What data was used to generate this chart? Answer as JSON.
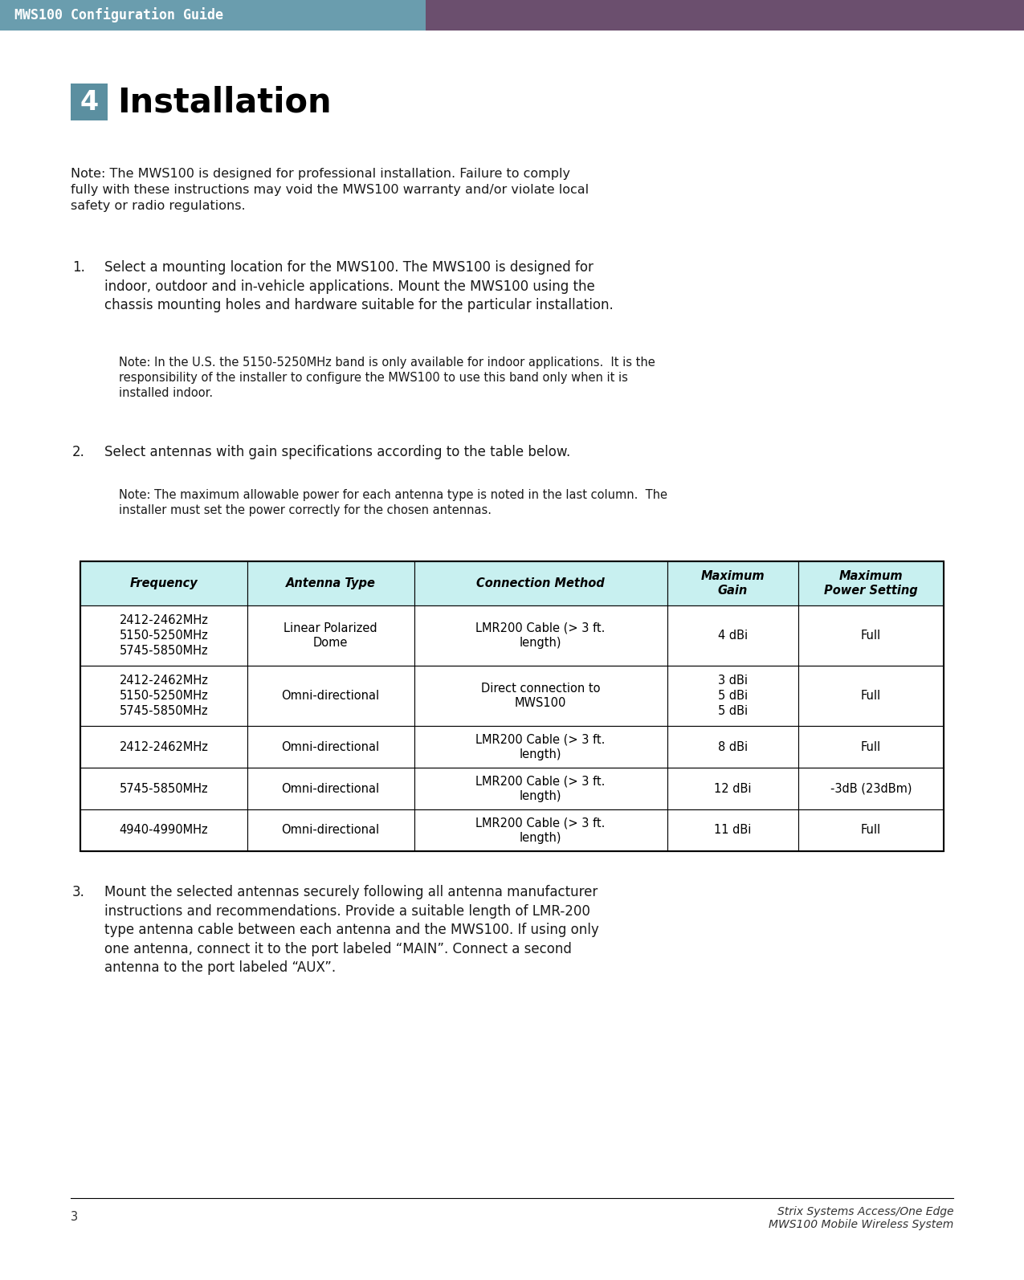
{
  "header_bg_left": "#6a9dae",
  "header_bg_right": "#6b4f6e",
  "header_text": "MWS100 Configuration Guide",
  "header_text_color": "#ffffff",
  "page_bg": "#ffffff",
  "section_num": "4",
  "section_num_bg": "#5b8fa0",
  "section_num_color": "#ffffff",
  "section_title": "Installation",
  "section_title_color": "#000000",
  "note1": "Note: The MWS100 is designed for professional installation. Failure to comply\nfully with these instructions may void the MWS100 warranty and/or violate local\nsafety or radio regulations.",
  "item1_title": "Select a mounting location for the MWS100. The MWS100 is designed for\nindoor, outdoor and in-vehicle applications. Mount the MWS100 using the\nchassis mounting holes and hardware suitable for the particular installation.",
  "note1b": "Note: In the U.S. the 5150-5250MHz band is only available for indoor applications.  It is the\nresponsibility of the installer to configure the MWS100 to use this band only when it is\ninstalled indoor.",
  "item2_title": "Select antennas with gain specifications according to the table below.",
  "note2": "Note: The maximum allowable power for each antenna type is noted in the last column.  The\ninstaller must set the power correctly for the chosen antennas.",
  "table_header": [
    "Frequency",
    "Antenna Type",
    "Connection Method",
    "Maximum\nGain",
    "Maximum\nPower Setting"
  ],
  "table_rows": [
    [
      "2412-2462MHz\n5150-5250MHz\n5745-5850MHz",
      "Linear Polarized\nDome",
      "LMR200 Cable (> 3 ft.\nlength)",
      "4 dBi",
      "Full"
    ],
    [
      "2412-2462MHz\n5150-5250MHz\n5745-5850MHz",
      "Omni-directional",
      "Direct connection to\nMWS100",
      "3 dBi\n5 dBi\n5 dBi",
      "Full"
    ],
    [
      "2412-2462MHz",
      "Omni-directional",
      "LMR200 Cable (> 3 ft.\nlength)",
      "8 dBi",
      "Full"
    ],
    [
      "5745-5850MHz",
      "Omni-directional",
      "LMR200 Cable (> 3 ft.\nlength)",
      "12 dBi",
      "-3dB (23dBm)"
    ],
    [
      "4940-4990MHz",
      "Omni-directional",
      "LMR200 Cable (> 3 ft.\nlength)",
      "11 dBi",
      "Full"
    ]
  ],
  "item3_text": "Mount the selected antennas securely following all antenna manufacturer\ninstructions and recommendations. Provide a suitable length of LMR-200\ntype antenna cable between each antenna and the MWS100. If using only\none antenna, connect it to the port labeled “MAIN”. Connect a second\nantenna to the port labeled “AUX”.",
  "footer_line_color": "#000000",
  "footer_page": "3",
  "footer_right1": "Strix Systems Access/One Edge",
  "footer_right2": "MWS100 Mobile Wireless System",
  "table_header_bg": "#c8f0f0",
  "table_border_color": "#000000"
}
